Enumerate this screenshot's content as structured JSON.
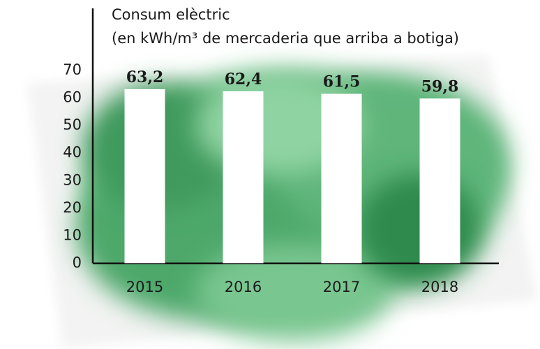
{
  "chart_data": {
    "type": "bar",
    "title": "Consum elèctric",
    "subtitle": "(en kWh/m³ de mercaderia que arriba a botiga)",
    "categories": [
      "2015",
      "2016",
      "2017",
      "2018"
    ],
    "values": [
      63.2,
      62.4,
      61.5,
      59.8
    ],
    "value_labels": [
      "63,2",
      "62,4",
      "61,5",
      "59,8"
    ],
    "color": "#ffffff",
    "ylim": [
      0,
      70
    ],
    "yticks": [
      0,
      10,
      20,
      30,
      40,
      50,
      60,
      70
    ],
    "grid": false
  }
}
